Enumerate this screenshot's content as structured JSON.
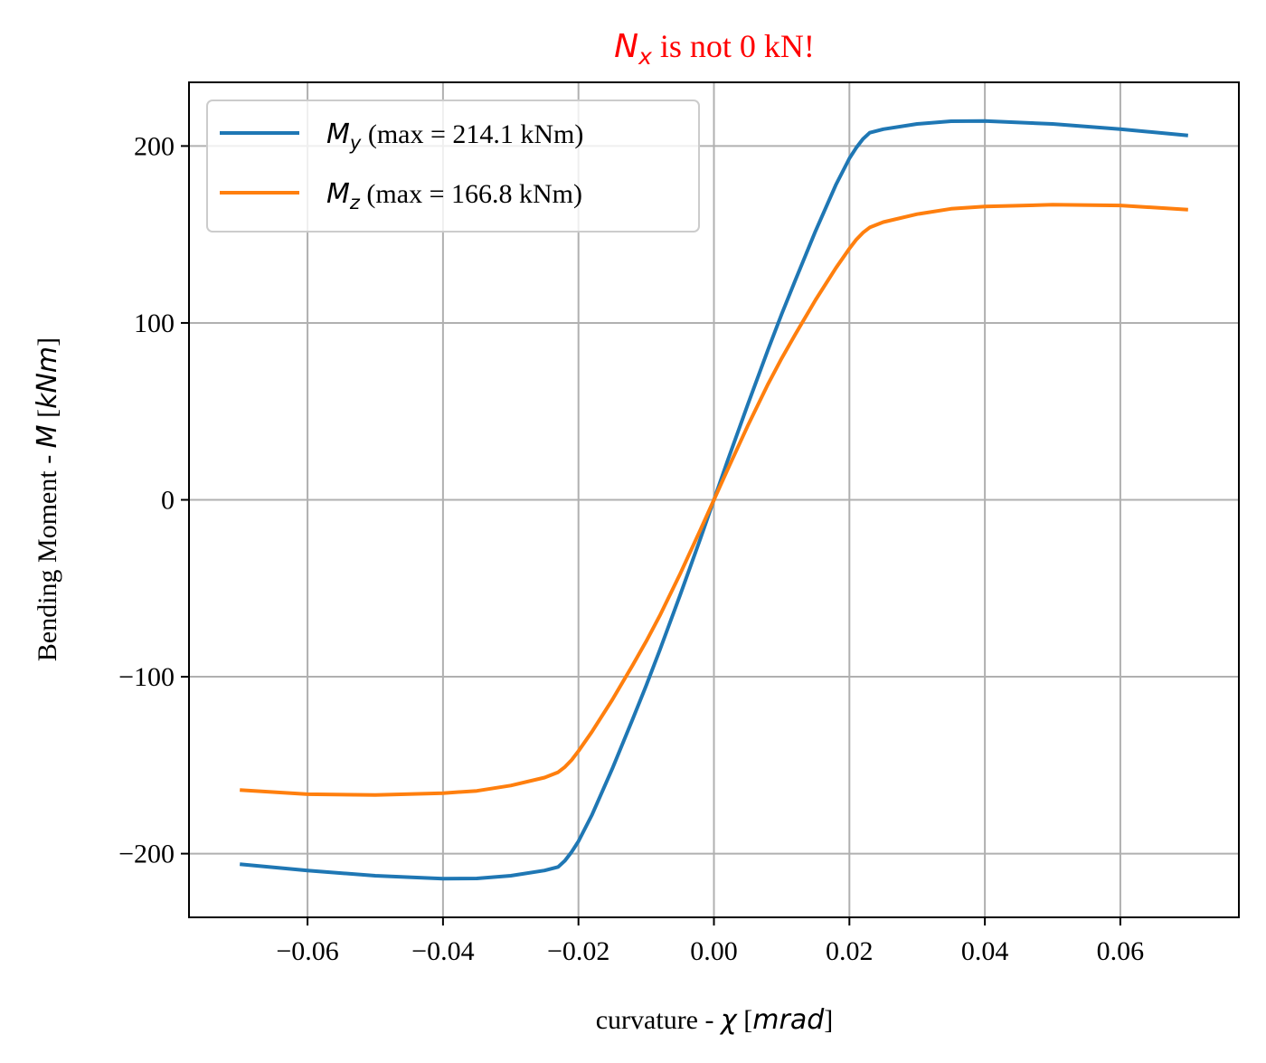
{
  "chart_data": {
    "type": "line",
    "title": {
      "symbol": "N",
      "subscript": "x",
      "rest": " is not 0 kN!",
      "color": "#ff0000"
    },
    "xlabel": {
      "prefix": "curvature - ",
      "symbol": "χ",
      "unit_open": " [",
      "unit": "mrad",
      "unit_close": "]"
    },
    "ylabel": {
      "prefix": "Bending Moment - ",
      "symbol": "M",
      "unit_open": " [",
      "unit": "kNm",
      "unit_close": "]"
    },
    "xlim": [
      -0.0775,
      0.0775
    ],
    "ylim": [
      -236,
      236
    ],
    "xticks": [
      -0.06,
      -0.04,
      -0.02,
      0.0,
      0.02,
      0.04,
      0.06
    ],
    "xtick_labels": [
      "−0.06",
      "−0.04",
      "−0.02",
      "0.00",
      "0.02",
      "0.04",
      "0.06"
    ],
    "yticks": [
      -200,
      -100,
      0,
      100,
      200
    ],
    "ytick_labels": [
      "−200",
      "−100",
      "0",
      "100",
      "200"
    ],
    "grid": true,
    "legend_position": "top-left",
    "series": [
      {
        "name": "My",
        "label_symbol": "M",
        "label_subscript": "y",
        "label_rest": " (max = 214.1 kNm)",
        "color": "#1f77b4",
        "x": [
          -0.07,
          -0.06,
          -0.05,
          -0.04,
          -0.035,
          -0.03,
          -0.025,
          -0.023,
          -0.022,
          -0.021,
          -0.02,
          -0.018,
          -0.015,
          -0.012,
          -0.01,
          -0.008,
          -0.005,
          -0.002,
          0.0,
          0.002,
          0.005,
          0.008,
          0.01,
          0.012,
          0.015,
          0.018,
          0.02,
          0.021,
          0.022,
          0.023,
          0.025,
          0.03,
          0.035,
          0.04,
          0.05,
          0.06,
          0.07
        ],
        "y": [
          -206,
          -209.5,
          -212.5,
          -214.1,
          -214,
          -212.5,
          -209.5,
          -207.5,
          -204,
          -199,
          -193,
          -178,
          -152,
          -124,
          -105,
          -85,
          -54,
          -22,
          0,
          22,
          54,
          85,
          105,
          124,
          152,
          178,
          193,
          199,
          204,
          207.5,
          209.5,
          212.5,
          214,
          214.1,
          212.5,
          209.5,
          206
        ]
      },
      {
        "name": "Mz",
        "label_symbol": "M",
        "label_subscript": "z",
        "label_rest": " (max = 166.8 kNm)",
        "color": "#ff7f0e",
        "x": [
          -0.07,
          -0.06,
          -0.05,
          -0.04,
          -0.035,
          -0.03,
          -0.025,
          -0.023,
          -0.022,
          -0.021,
          -0.02,
          -0.018,
          -0.015,
          -0.012,
          -0.01,
          -0.008,
          -0.005,
          -0.002,
          0.0,
          0.002,
          0.005,
          0.008,
          0.01,
          0.012,
          0.015,
          0.018,
          0.02,
          0.021,
          0.022,
          0.023,
          0.025,
          0.03,
          0.035,
          0.04,
          0.05,
          0.06,
          0.07
        ],
        "y": [
          -164,
          -166.4,
          -166.8,
          -165.8,
          -164.5,
          -161.5,
          -157,
          -154,
          -151,
          -147,
          -142,
          -131,
          -113,
          -93.5,
          -80,
          -65.5,
          -42,
          -17,
          0,
          17,
          42,
          65.5,
          80,
          93.5,
          113,
          131,
          142,
          147,
          151,
          154,
          157,
          161.5,
          164.5,
          165.8,
          166.8,
          166.4,
          164
        ]
      }
    ]
  }
}
